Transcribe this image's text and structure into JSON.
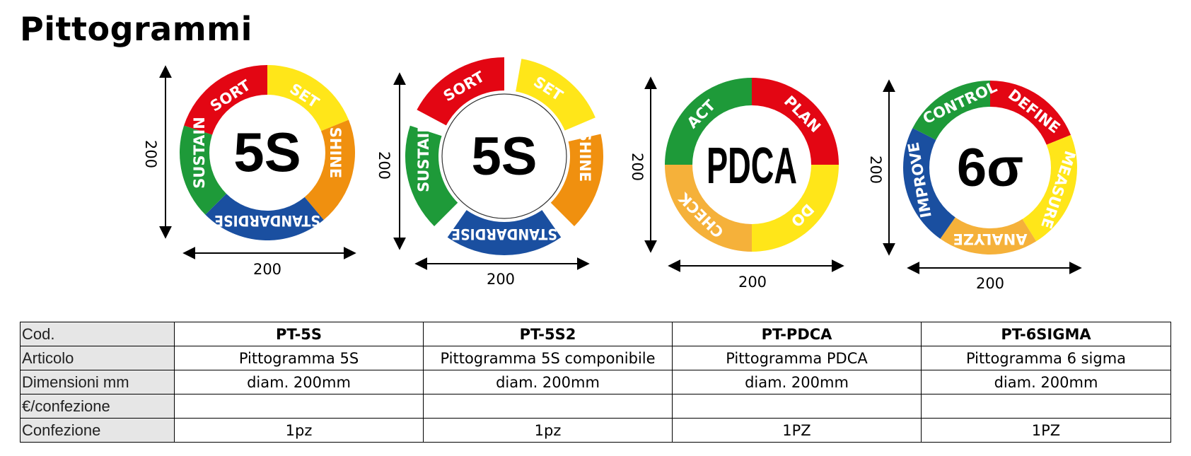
{
  "title": "Pittogrammi",
  "colors": {
    "red": "#e30613",
    "yellow": "#ffe619",
    "orange": "#f0900f",
    "blue": "#1a4fa0",
    "green": "#1e9a39",
    "light_orange": "#f5b13a"
  },
  "pictograms": [
    {
      "id": "pt-5s",
      "center": "5S",
      "dim_width": "200",
      "dim_height": "200",
      "segments": [
        {
          "label": "SORT",
          "color": "#e30613"
        },
        {
          "label": "SET",
          "color": "#ffe619"
        },
        {
          "label": "SHINE",
          "color": "#f0900f"
        },
        {
          "label": "STANDARDISE",
          "color": "#1a4fa0"
        },
        {
          "label": "SUSTAIN",
          "color": "#1e9a39"
        }
      ]
    },
    {
      "id": "pt-5s2",
      "center": "5S",
      "dim_width": "200",
      "dim_height": "200",
      "segments": [
        {
          "label": "SORT",
          "color": "#e30613"
        },
        {
          "label": "SET",
          "color": "#ffe619"
        },
        {
          "label": "SHINE",
          "color": "#f0900f"
        },
        {
          "label": "STANDARDISE",
          "color": "#1a4fa0"
        },
        {
          "label": "SUSTAIN",
          "color": "#1e9a39"
        }
      ]
    },
    {
      "id": "pt-pdca",
      "center": "PDCA",
      "dim_width": "200",
      "dim_height": "200",
      "segments": [
        {
          "label": "PLAN",
          "color": "#e30613"
        },
        {
          "label": "DO",
          "color": "#ffe619"
        },
        {
          "label": "CHECK",
          "color": "#f5b13a"
        },
        {
          "label": "ACT",
          "color": "#1e9a39"
        }
      ]
    },
    {
      "id": "pt-6sigma",
      "center": "6σ",
      "dim_width": "200",
      "dim_height": "200",
      "segments": [
        {
          "label": "DEFINE",
          "color": "#e30613"
        },
        {
          "label": "MEASURE",
          "color": "#ffe619"
        },
        {
          "label": "ANALYZE",
          "color": "#f5b13a"
        },
        {
          "label": "IMPROVE",
          "color": "#1a4fa0"
        },
        {
          "label": "CONTROL",
          "color": "#1e9a39"
        }
      ]
    }
  ],
  "table": {
    "row_labels": [
      "Cod.",
      "Articolo",
      "Dimensioni mm",
      "€/confezione",
      "Confezione"
    ],
    "columns": [
      {
        "cod": "PT-5S",
        "articolo": "Pittogramma 5S",
        "dimensioni": "diam. 200mm",
        "prezzo": "",
        "confezione": "1pz"
      },
      {
        "cod": "PT-5S2",
        "articolo": "Pittogramma 5S componibile",
        "dimensioni": "diam. 200mm",
        "prezzo": "",
        "confezione": "1pz"
      },
      {
        "cod": "PT-PDCA",
        "articolo": "Pittogramma PDCA",
        "dimensioni": "diam. 200mm",
        "prezzo": "",
        "confezione": "1PZ"
      },
      {
        "cod": "PT-6SIGMA",
        "articolo": "Pittogramma 6 sigma",
        "dimensioni": "diam. 200mm",
        "prezzo": "",
        "confezione": "1PZ"
      }
    ]
  }
}
